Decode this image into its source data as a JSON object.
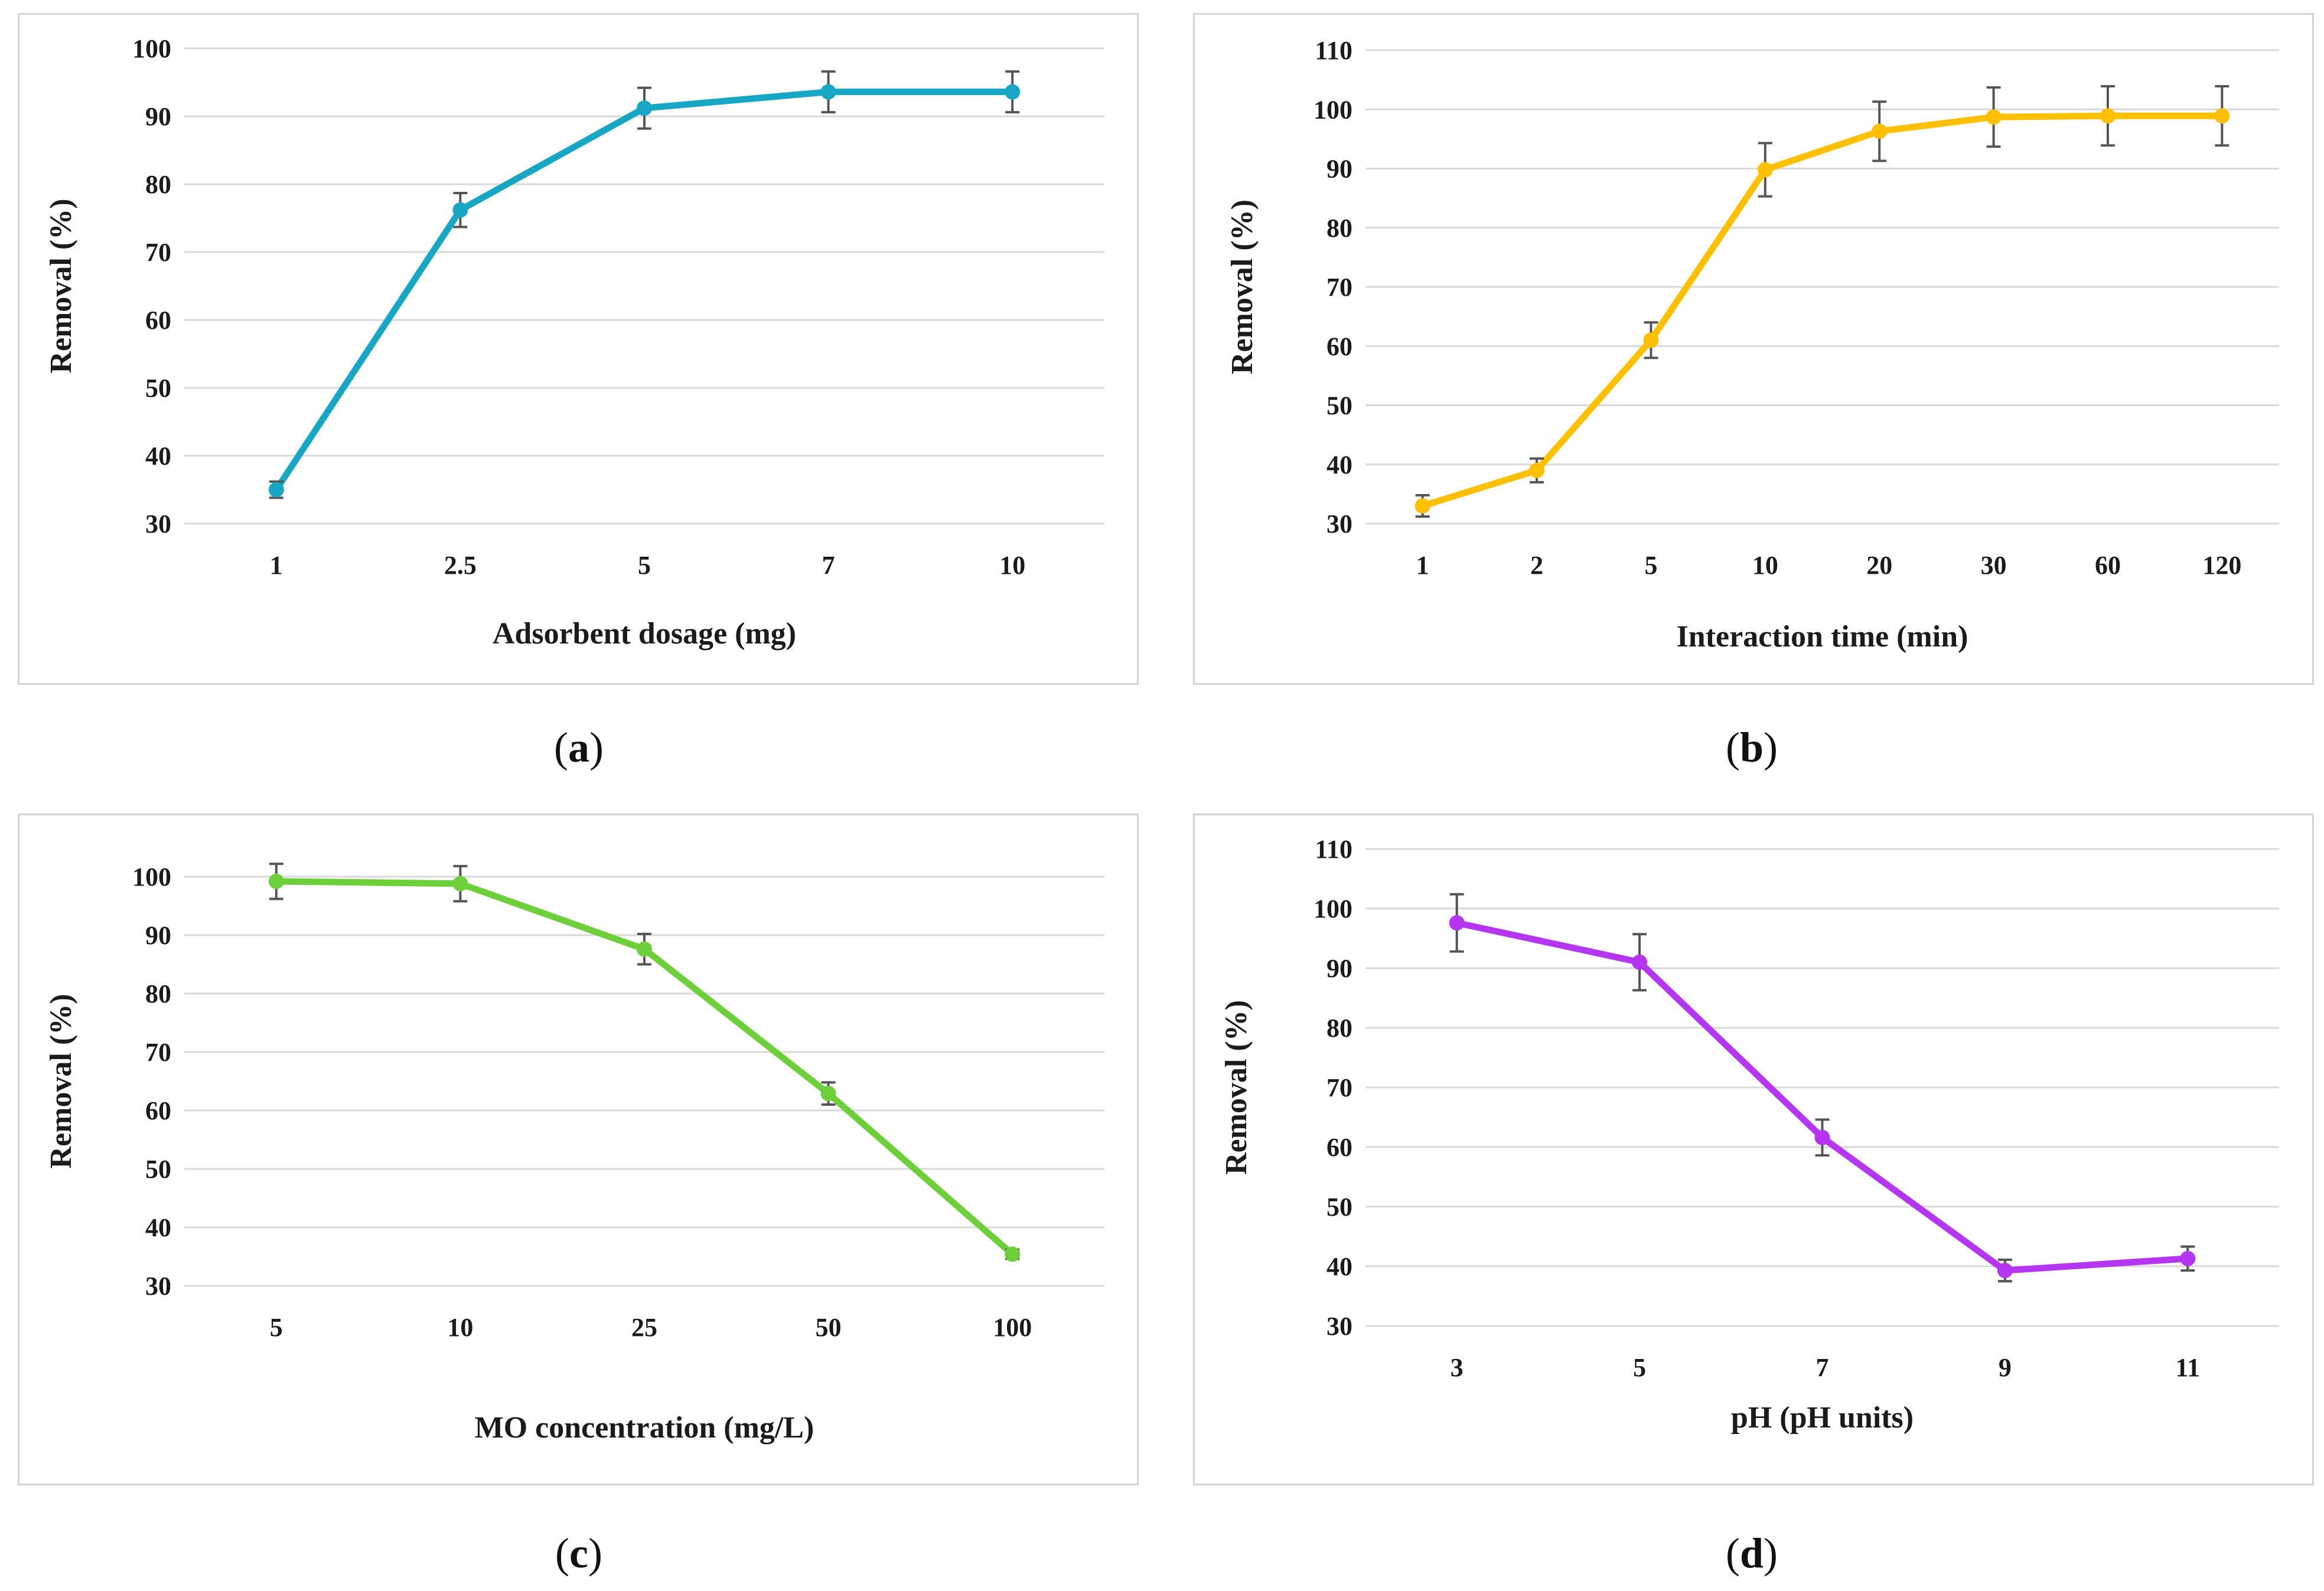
{
  "chart_data": [
    {
      "id": "a",
      "type": "line",
      "caption_label": "a",
      "title": "",
      "xlabel": "Adsorbent dosage (mg)",
      "ylabel": "Removal  (%)",
      "categories": [
        "1",
        "2.5",
        "5",
        "7",
        "10"
      ],
      "series": [
        {
          "name": "Removal",
          "values": [
            35.0,
            76.2,
            91.2,
            93.6,
            93.6
          ],
          "errors": [
            1.2,
            2.5,
            3.0,
            3.0,
            3.0
          ],
          "color": "#17a7c4"
        }
      ],
      "ylim": [
        30,
        100
      ],
      "yticks": [
        30,
        40,
        50,
        60,
        70,
        80,
        90,
        100
      ],
      "grid": true
    },
    {
      "id": "b",
      "type": "line",
      "caption_label": "b",
      "title": "",
      "xlabel": "Interaction time (min)",
      "ylabel": "Removal (%)",
      "categories": [
        "1",
        "2",
        "5",
        "10",
        "20",
        "30",
        "60",
        "120"
      ],
      "series": [
        {
          "name": "Removal",
          "values": [
            33.0,
            39.0,
            61.0,
            89.8,
            96.3,
            98.7,
            98.9,
            98.9
          ],
          "errors": [
            1.8,
            2.0,
            3.0,
            4.5,
            5.0,
            5.0,
            5.0,
            5.0
          ],
          "color": "#ffc000"
        }
      ],
      "ylim": [
        30,
        110
      ],
      "yticks": [
        30,
        40,
        50,
        60,
        70,
        80,
        90,
        100,
        110
      ],
      "grid": true
    },
    {
      "id": "c",
      "type": "line",
      "caption_label": "c",
      "title": "",
      "xlabel": "MO concentration (mg/L)",
      "ylabel": "Removal  (%)",
      "categories": [
        "5",
        "10",
        "25",
        "50",
        "100"
      ],
      "series": [
        {
          "name": "Removal",
          "values": [
            99.2,
            98.8,
            87.6,
            62.9,
            35.4
          ],
          "errors": [
            3.0,
            3.0,
            2.6,
            1.9,
            0.8
          ],
          "color": "#6dd03a"
        }
      ],
      "ylim": [
        30,
        100
      ],
      "yticks": [
        30,
        40,
        50,
        60,
        70,
        80,
        90,
        100
      ],
      "grid": true
    },
    {
      "id": "d",
      "type": "line",
      "caption_label": "d",
      "title": "",
      "xlabel": "pH (pH units)",
      "ylabel": "Removal (%)",
      "categories": [
        "3",
        "5",
        "7",
        "9",
        "11"
      ],
      "series": [
        {
          "name": "Removal",
          "values": [
            97.6,
            91.0,
            61.6,
            39.3,
            41.3
          ],
          "errors": [
            4.8,
            4.7,
            3.0,
            1.8,
            2.0
          ],
          "color": "#b536f2"
        }
      ],
      "ylim": [
        30,
        110
      ],
      "yticks": [
        30,
        40,
        50,
        60,
        70,
        80,
        90,
        100,
        110
      ],
      "grid": true
    }
  ]
}
